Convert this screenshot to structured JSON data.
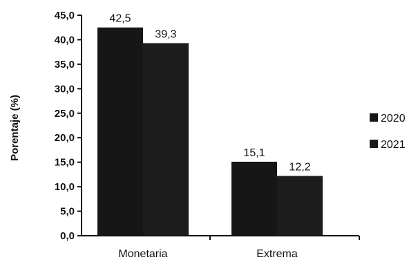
{
  "chart_data": {
    "type": "bar",
    "ylabel": "Porentaje (%)",
    "categories": [
      "Monetaria",
      "Extrema"
    ],
    "series": [
      {
        "name": "2020",
        "values": [
          42.5,
          15.1
        ],
        "labels": [
          "42,5",
          "15,1"
        ],
        "color": "#161616"
      },
      {
        "name": "2021",
        "values": [
          39.3,
          12.2
        ],
        "labels": [
          "39,3",
          "12,2"
        ],
        "color": "#1c1c1c"
      }
    ],
    "ylim": [
      0,
      45
    ],
    "yticks": [
      0,
      5,
      10,
      15,
      20,
      25,
      30,
      35,
      40,
      45
    ],
    "ytick_labels": [
      "0,0",
      "5,0",
      "10,0",
      "15,0",
      "20,0",
      "25,0",
      "30,0",
      "35,0",
      "40,0",
      "45,0"
    ],
    "grid": false,
    "legend": "right"
  }
}
